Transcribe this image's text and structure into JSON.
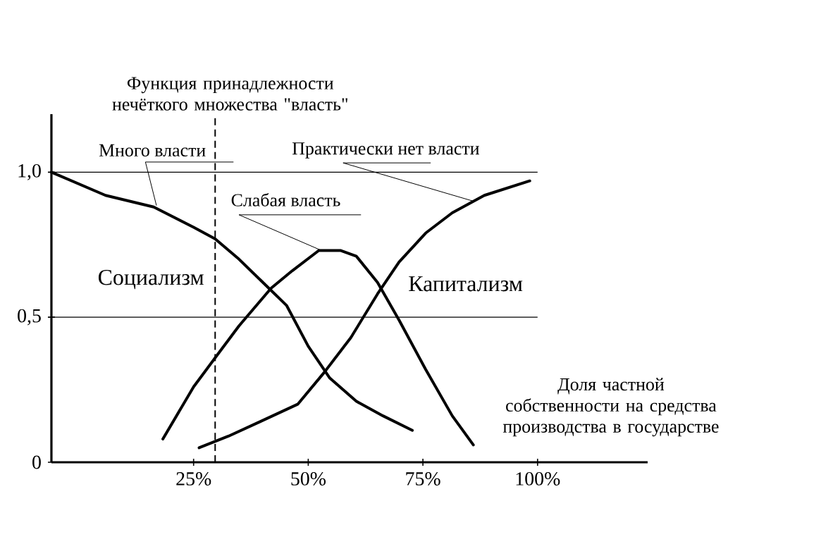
{
  "chart_data": {
    "type": "line",
    "ylabel": "Функция принадлежности нечёткого множества \"власть\"",
    "xlabel": "Доля частной собственности на средства производства в государстве",
    "xlim": [
      -6,
      124
    ],
    "ylim": [
      0,
      1.2
    ],
    "xticks": [
      {
        "value": 25,
        "label": "25%"
      },
      {
        "value": 50,
        "label": "50%"
      },
      {
        "value": 75,
        "label": "75%"
      },
      {
        "value": 100,
        "label": "100%"
      }
    ],
    "yticks": [
      0,
      {
        "value": 0.5,
        "label": "0,5"
      },
      {
        "value": 1,
        "label": "1,0"
      }
    ],
    "grid": false,
    "marker": "none",
    "line_style": "solid",
    "series": [
      {
        "name": "Много власти",
        "color": "#000000",
        "x": [
          -6,
          5.8,
          16.3,
          25,
          29.7,
          34.9,
          40.1,
          45.3,
          50,
          54.7,
          60.5,
          66.3,
          72.7
        ],
        "values": [
          1.0,
          0.92,
          0.88,
          0.81,
          0.77,
          0.7,
          0.62,
          0.54,
          0.4,
          0.29,
          0.21,
          0.16,
          0.11
        ]
      },
      {
        "name": "Слабая власть",
        "color": "#000000",
        "x": [
          18.3,
          25,
          29.7,
          34.9,
          41.9,
          46.5,
          52.3,
          57,
          60.5,
          65.1,
          69.8,
          75.6,
          81.4,
          86
        ],
        "values": [
          0.08,
          0.26,
          0.36,
          0.47,
          0.6,
          0.66,
          0.73,
          0.73,
          0.71,
          0.62,
          0.49,
          0.32,
          0.16,
          0.06
        ]
      },
      {
        "name": "Практически нет власти",
        "color": "#000000",
        "x": [
          26.2,
          32.6,
          39.5,
          47.7,
          53.5,
          59.3,
          65.1,
          69.8,
          75.6,
          81.4,
          88.4,
          98.3
        ],
        "values": [
          0.05,
          0.09,
          0.14,
          0.2,
          0.31,
          0.43,
          0.58,
          0.69,
          0.79,
          0.86,
          0.92,
          0.97
        ]
      }
    ],
    "ref_lines": [
      {
        "axis": "y",
        "value": 1.0,
        "color": "#000000"
      },
      {
        "axis": "y",
        "value": 0.5,
        "color": "#000000"
      },
      {
        "axis": "x",
        "value": 29.7,
        "color": "#000000",
        "line_style": "dashed"
      }
    ],
    "annotations": [
      "Социализм",
      "Капитализм"
    ]
  }
}
